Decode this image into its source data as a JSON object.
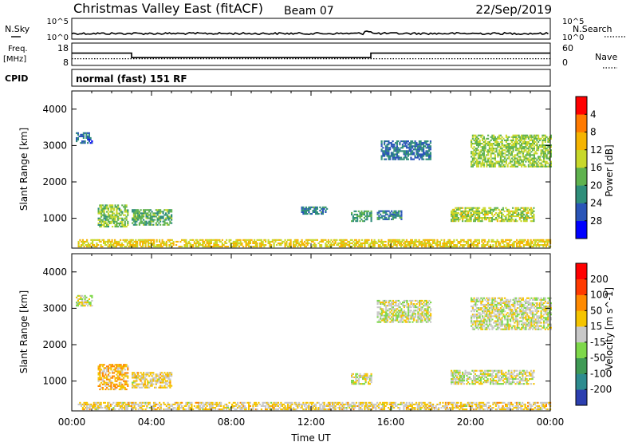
{
  "header": {
    "station": "Christmas Valley East (fitACF)",
    "beam": "Beam 07",
    "date": "22/Sep/2019"
  },
  "noise_panel": {
    "left_label": "N.Sky",
    "right_label": "N.Search",
    "left_ticks": [
      "10^5",
      "10^0"
    ],
    "right_ticks": [
      "10^5",
      "10^0"
    ]
  },
  "freq_panel": {
    "left_label_1": "Freq.",
    "left_label_2": "[MHz]",
    "right_label": "Nave",
    "left_ticks": [
      "18",
      "8"
    ],
    "right_ticks": [
      "60",
      "0"
    ],
    "freq_mhz_series": [
      {
        "t0": 0,
        "t1": 3,
        "v": 13.5
      },
      {
        "t0": 3,
        "t1": 15,
        "v": 11.5
      },
      {
        "t0": 15,
        "t1": 24,
        "v": 13.5
      }
    ],
    "nave_series": [
      {
        "t0": 0,
        "t1": 24,
        "v": 18
      }
    ]
  },
  "cpid": {
    "label": "CPID",
    "mode": "normal (fast) 151 RF"
  },
  "chart_data": [
    {
      "type": "heatmap",
      "name": "Power",
      "xlabel": "",
      "ylabel": "Slant Range [km]",
      "xlim": [
        0,
        24
      ],
      "ylim": [
        180,
        4500
      ],
      "yticks": [
        1000,
        2000,
        3000,
        4000
      ],
      "colorbar": {
        "label": "Power [dB]",
        "range": [
          0,
          32
        ],
        "ticks": [
          "4",
          "8",
          "12",
          "16",
          "20",
          "24",
          "28"
        ],
        "colors": [
          "#0000ff",
          "#2a55b8",
          "#2f8e7a",
          "#5fb24e",
          "#c8d82a",
          "#f5b400",
          "#ff7a00",
          "#ff0000"
        ]
      },
      "regions": [
        {
          "t0": 0.2,
          "t1": 1.0,
          "r0": 3050,
          "r1": 3350,
          "v": 7
        },
        {
          "t0": 1.3,
          "t1": 2.8,
          "r0": 750,
          "r1": 1350,
          "v": 15
        },
        {
          "t0": 3.0,
          "t1": 5.0,
          "r0": 800,
          "r1": 1250,
          "v": 13
        },
        {
          "t0": 11.5,
          "t1": 12.8,
          "r0": 1100,
          "r1": 1300,
          "v": 9
        },
        {
          "t0": 14.0,
          "t1": 15.0,
          "r0": 900,
          "r1": 1200,
          "v": 12
        },
        {
          "t0": 15.3,
          "t1": 16.5,
          "r0": 950,
          "r1": 1200,
          "v": 9
        },
        {
          "t0": 15.5,
          "t1": 18.0,
          "r0": 2600,
          "r1": 3100,
          "v": 8
        },
        {
          "t0": 19.0,
          "t1": 23.2,
          "r0": 900,
          "r1": 1300,
          "v": 17
        },
        {
          "t0": 20.0,
          "t1": 24.0,
          "r0": 2400,
          "r1": 3300,
          "v": 16
        },
        {
          "t0": 0.3,
          "t1": 24.0,
          "r0": 200,
          "r1": 420,
          "v": 20
        }
      ]
    },
    {
      "type": "heatmap",
      "name": "Velocity",
      "xlabel": "Time UT",
      "ylabel": "Slant Range [km]",
      "xlim": [
        0,
        24
      ],
      "ylim": [
        180,
        4500
      ],
      "xticks": [
        "00:00",
        "04:00",
        "08:00",
        "12:00",
        "16:00",
        "20:00",
        "00:00"
      ],
      "yticks": [
        1000,
        2000,
        3000,
        4000
      ],
      "colorbar": {
        "label": "Velocity [m s^-1]",
        "range": [
          -250,
          250
        ],
        "ticks": [
          "200",
          "100",
          "50",
          "15",
          "-15",
          "-50",
          "-100",
          "-200"
        ],
        "colors": [
          "#2c3fb0",
          "#2e8c8f",
          "#3f9a55",
          "#7ed84a",
          "#c8c8c8",
          "#f5c400",
          "#ff8a00",
          "#ff3a00",
          "#ff0000"
        ]
      },
      "regions": [
        {
          "t0": 0.2,
          "t1": 1.0,
          "r0": 3050,
          "r1": 3350,
          "v": 0
        },
        {
          "t0": 1.3,
          "t1": 2.8,
          "r0": 750,
          "r1": 1450,
          "v": 70
        },
        {
          "t0": 3.0,
          "t1": 5.0,
          "r0": 800,
          "r1": 1250,
          "v": 30
        },
        {
          "t0": 14.0,
          "t1": 15.0,
          "r0": 900,
          "r1": 1200,
          "v": 0
        },
        {
          "t0": 15.3,
          "t1": 18.0,
          "r0": 2600,
          "r1": 3200,
          "v": 0
        },
        {
          "t0": 19.0,
          "t1": 23.2,
          "r0": 900,
          "r1": 1300,
          "v": 0
        },
        {
          "t0": 20.0,
          "t1": 24.0,
          "r0": 2400,
          "r1": 3300,
          "v": 0
        },
        {
          "t0": 0.3,
          "t1": 24.0,
          "r0": 200,
          "r1": 420,
          "v": 30
        }
      ]
    }
  ]
}
